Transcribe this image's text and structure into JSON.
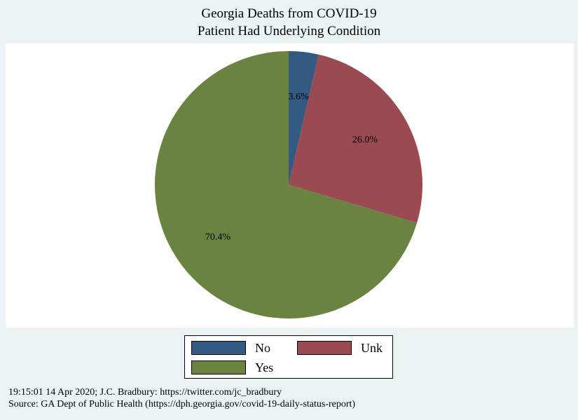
{
  "chart_data": {
    "type": "pie",
    "title": "Georgia Deaths from COVID-19",
    "subtitle": "Patient Had Underlying Condition",
    "slices": [
      {
        "label": "No",
        "value": 3.6,
        "value_label": "3.6%",
        "color": "#335b82"
      },
      {
        "label": "Unk",
        "value": 26.0,
        "value_label": "26.0%",
        "color": "#9a4a50"
      },
      {
        "label": "Yes",
        "value": 70.4,
        "value_label": "70.4%",
        "color": "#6b8341"
      }
    ],
    "legend_position": "bottom"
  },
  "notes": {
    "line1": "19:15:01  14 Apr 2020; J.C. Bradbury: https://twitter.com/jc_bradbury",
    "line2": "Source: GA Dept of Public Health (https://dph.georgia.gov/covid-19-daily-status-report)"
  },
  "colors": {
    "background": "#eaf2f3",
    "plot_background": "#ffffff"
  }
}
